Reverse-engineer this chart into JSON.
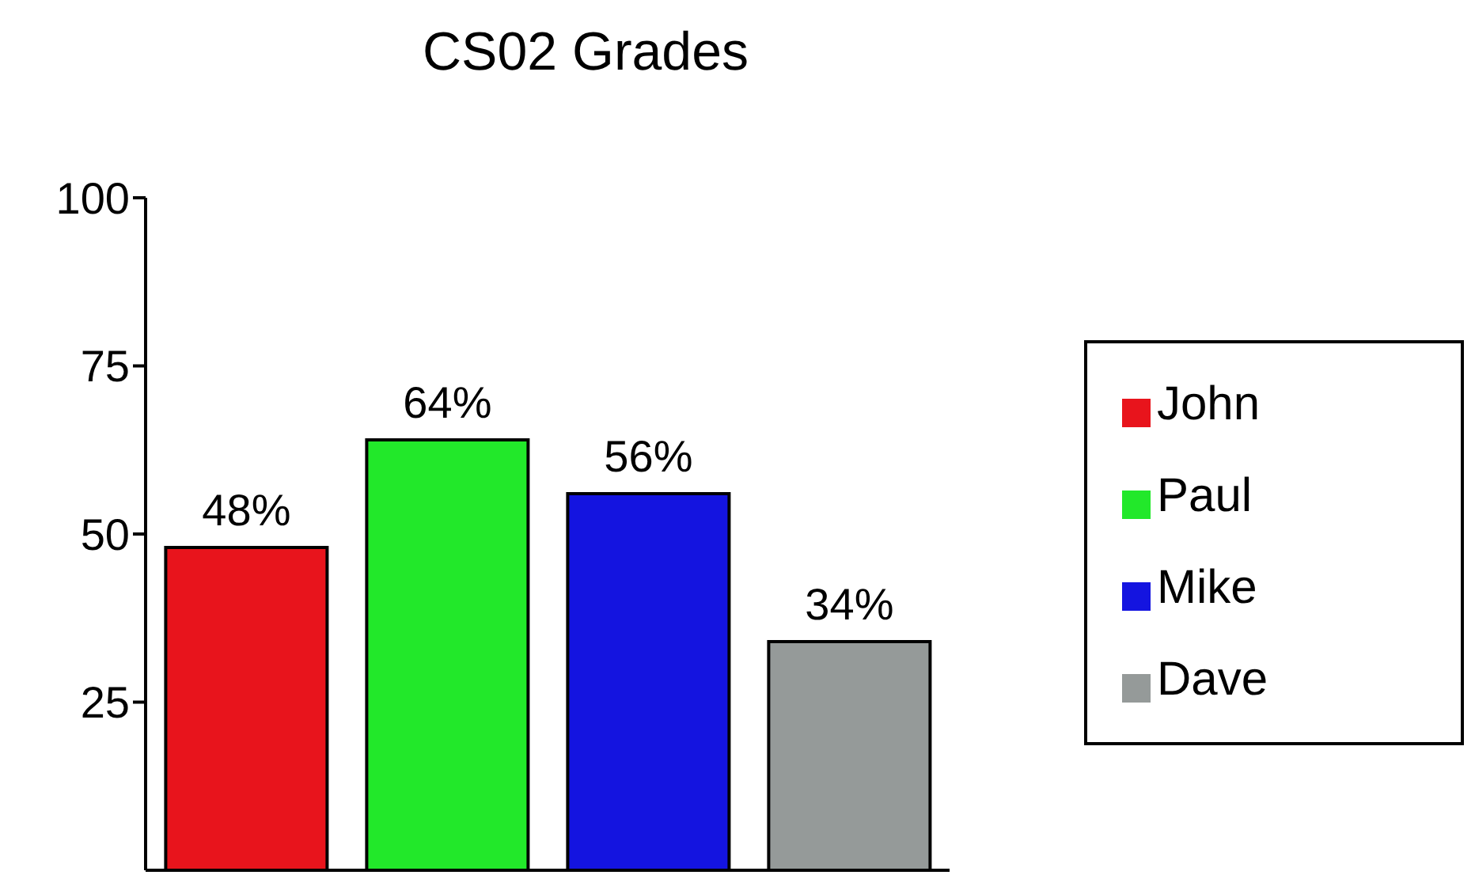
{
  "chart_data": {
    "type": "bar",
    "title": "CS02 Grades",
    "categories": [
      null,
      null,
      null,
      null
    ],
    "stacked": true,
    "series": [
      {
        "name": "John",
        "color": "#e8141c",
        "values": [
          48,
          null,
          null,
          null
        ],
        "value_labels": [
          "48%",
          null,
          null,
          null
        ]
      },
      {
        "name": "Paul",
        "color": "#22e82a",
        "values": [
          null,
          64,
          null,
          null
        ],
        "value_labels": [
          null,
          "64%",
          null,
          null
        ]
      },
      {
        "name": "Mike",
        "color": "#1414e0",
        "values": [
          null,
          null,
          56,
          null
        ],
        "value_labels": [
          null,
          null,
          "56%",
          null
        ]
      },
      {
        "name": "Dave",
        "color": "#959a99",
        "values": [
          null,
          null,
          null,
          34
        ],
        "value_labels": [
          null,
          null,
          null,
          "34%"
        ]
      }
    ],
    "ylim": [
      0,
      100
    ],
    "yticks": [
      25,
      50,
      75,
      100
    ],
    "tick_labels": "y",
    "legend": "right",
    "grid": false
  }
}
